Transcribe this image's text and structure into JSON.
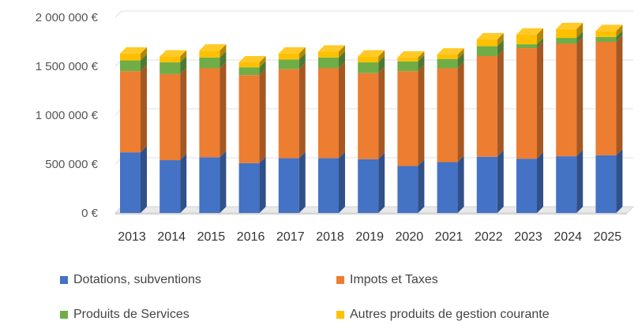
{
  "chart_data": {
    "type": "bar",
    "stacked": true,
    "style": "3d-column",
    "title": "",
    "xlabel": "",
    "ylabel": "",
    "ylim": [
      0,
      2000000
    ],
    "y_ticks": [
      {
        "value": 0,
        "label": "0 €"
      },
      {
        "value": 500000,
        "label": "500 000 €"
      },
      {
        "value": 1000000,
        "label": "1 000 000 €"
      },
      {
        "value": 1500000,
        "label": "1 500 000 €"
      },
      {
        "value": 2000000,
        "label": "2 000 000 €"
      }
    ],
    "grid": true,
    "legend_position": "bottom",
    "categories": [
      "2013",
      "2014",
      "2015",
      "2016",
      "2017",
      "2018",
      "2019",
      "2020",
      "2021",
      "2022",
      "2023",
      "2024",
      "2025"
    ],
    "series": [
      {
        "name": "Dotations, subventions",
        "color": "#4472C4",
        "values": [
          620000,
          540000,
          570000,
          510000,
          560000,
          560000,
          550000,
          480000,
          520000,
          575000,
          555000,
          580000,
          590000
        ]
      },
      {
        "name": "Impots et Taxes",
        "color": "#ED7D31",
        "values": [
          830000,
          880000,
          910000,
          900000,
          910000,
          920000,
          880000,
          970000,
          960000,
          1030000,
          1130000,
          1150000,
          1160000
        ]
      },
      {
        "name": "Produits de Services",
        "color": "#70AD47",
        "values": [
          110000,
          120000,
          110000,
          80000,
          100000,
          110000,
          110000,
          100000,
          95000,
          100000,
          40000,
          60000,
          50000
        ]
      },
      {
        "name": "Autres produits de gestion courante",
        "color": "#FFC000",
        "values": [
          70000,
          60000,
          70000,
          50000,
          60000,
          60000,
          60000,
          40000,
          45000,
          70000,
          100000,
          90000,
          60000
        ]
      }
    ]
  }
}
